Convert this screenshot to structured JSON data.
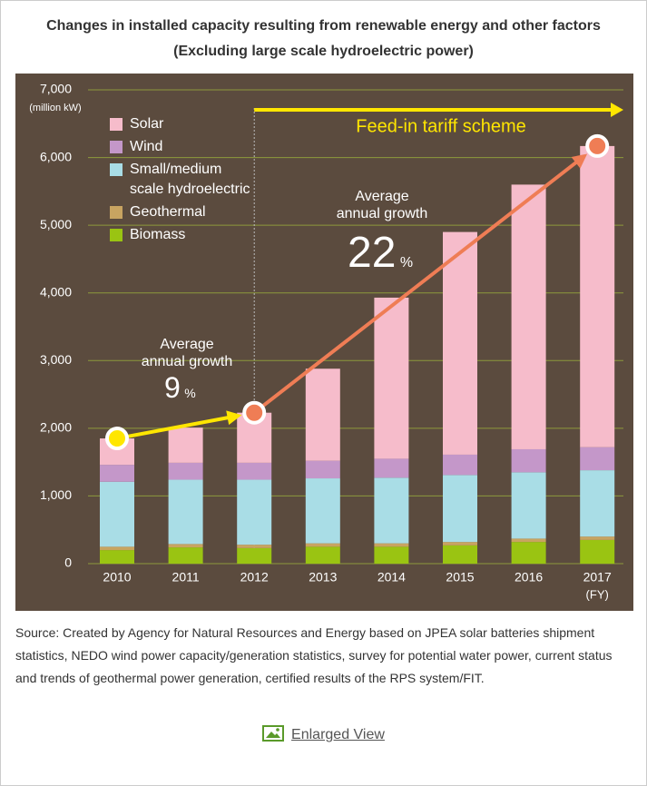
{
  "chart_data": {
    "type": "bar",
    "stacked": true,
    "title": "Changes in installed capacity resulting from renewable energy and other factors (Excluding large scale hydroelectric power)",
    "y_unit": "(million kW)",
    "x_unit": "(FY)",
    "categories": [
      "2010",
      "2011",
      "2012",
      "2013",
      "2014",
      "2015",
      "2016",
      "2017"
    ],
    "series": [
      {
        "name": "Biomass",
        "color": "#9ac412",
        "values": [
          200,
          240,
          230,
          250,
          250,
          270,
          320,
          350
        ]
      },
      {
        "name": "Geothermal",
        "color": "#c8a461",
        "values": [
          50,
          50,
          50,
          50,
          50,
          50,
          50,
          50
        ]
      },
      {
        "name": "Small/medium scale hydroelectric",
        "color": "#a9dde6",
        "values": [
          960,
          950,
          960,
          960,
          970,
          990,
          980,
          980
        ]
      },
      {
        "name": "Wind",
        "color": "#c497c9",
        "values": [
          250,
          250,
          250,
          260,
          280,
          300,
          340,
          340
        ]
      },
      {
        "name": "Solar",
        "color": "#f6bccb",
        "values": [
          390,
          520,
          740,
          1360,
          2380,
          3290,
          3910,
          4450
        ]
      }
    ],
    "ylim": [
      0,
      7000
    ],
    "yticks": [
      0,
      {
        "value": 1000,
        "label": "1,000"
      },
      {
        "value": 2000,
        "label": "2,000"
      },
      {
        "value": 3000,
        "label": "3,000"
      },
      {
        "value": 4000,
        "label": "4,000"
      },
      {
        "value": 5000,
        "label": "5,000"
      },
      {
        "value": 6000,
        "label": "6,000"
      },
      {
        "value": 7000,
        "label": "7,000"
      }
    ],
    "grid": true,
    "annotations": {
      "scheme": "Feed-in tariff scheme",
      "growth_before": {
        "label": "Average annual growth",
        "value": 9,
        "unit": "%"
      },
      "growth_after": {
        "label": "Average annual growth",
        "value": 22,
        "unit": "%"
      }
    }
  },
  "source": "Source: Created by Agency for Natural Resources and Energy based on JPEA solar batteries shipment statistics, NEDO wind power capacity/generation statistics, survey for potential water power, current status and trends of geothermal power generation, certified results of the RPS system/FIT.",
  "link": "Enlarged View"
}
